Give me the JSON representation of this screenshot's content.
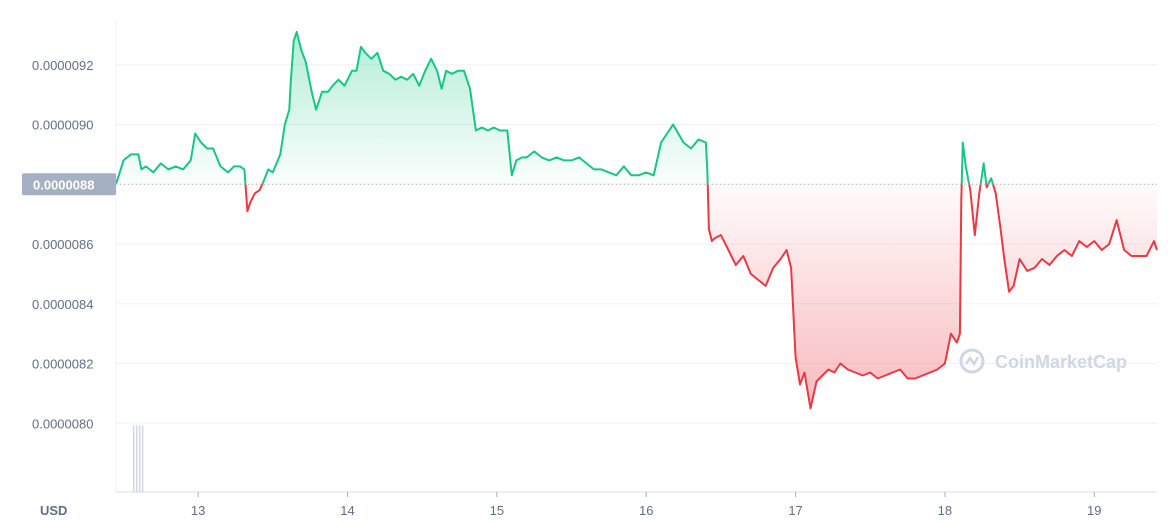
{
  "chart_data": {
    "type": "area",
    "currency_label": "USD",
    "watermark": "CoinMarketCap",
    "y_tick_labels": [
      "0.0000080",
      "0.0000082",
      "0.0000084",
      "0.0000086",
      "0.0000088",
      "0.0000090",
      "0.0000092"
    ],
    "y_ticks": [
      8e-06,
      8.2e-06,
      8.4e-06,
      8.6e-06,
      8.8e-06,
      9e-06,
      9.2e-06
    ],
    "ylim": [
      7.77e-06,
      9.35e-06
    ],
    "x_tick_labels": [
      "13",
      "14",
      "15",
      "16",
      "17",
      "18",
      "19"
    ],
    "x_ticks": [
      13,
      14,
      15,
      16,
      17,
      18,
      19
    ],
    "xlim": [
      12.45,
      19.42
    ],
    "reference_price": 8.8e-06,
    "reference_label": "0.0000088",
    "colors": {
      "up": "#16c784",
      "down": "#ea3943",
      "grid": "#eff2f5",
      "text": "#616e85"
    },
    "grid": true,
    "series": [
      {
        "values": [
          [
            12.45,
            8.8e-06
          ],
          [
            12.5,
            8.88e-06
          ],
          [
            12.55,
            8.9e-06
          ],
          [
            12.6,
            8.9e-06
          ],
          [
            12.62,
            8.85e-06
          ],
          [
            12.65,
            8.86e-06
          ],
          [
            12.7,
            8.84e-06
          ],
          [
            12.75,
            8.87e-06
          ],
          [
            12.8,
            8.85e-06
          ],
          [
            12.85,
            8.86e-06
          ],
          [
            12.9,
            8.85e-06
          ],
          [
            12.95,
            8.88e-06
          ],
          [
            12.98,
            8.97e-06
          ],
          [
            13.02,
            8.94e-06
          ],
          [
            13.06,
            8.92e-06
          ],
          [
            13.1,
            8.92e-06
          ],
          [
            13.15,
            8.86e-06
          ],
          [
            13.2,
            8.84e-06
          ],
          [
            13.24,
            8.86e-06
          ],
          [
            13.28,
            8.86e-06
          ],
          [
            13.31,
            8.85e-06
          ],
          [
            13.33,
            8.71e-06
          ],
          [
            13.35,
            8.74e-06
          ],
          [
            13.38,
            8.77e-06
          ],
          [
            13.41,
            8.78e-06
          ],
          [
            13.43,
            8.8e-06
          ],
          [
            13.47,
            8.85e-06
          ],
          [
            13.5,
            8.84e-06
          ],
          [
            13.55,
            8.9e-06
          ],
          [
            13.58,
            9e-06
          ],
          [
            13.61,
            9.05e-06
          ],
          [
            13.62,
            9.14e-06
          ],
          [
            13.64,
            9.28e-06
          ],
          [
            13.66,
            9.31e-06
          ],
          [
            13.69,
            9.25e-06
          ],
          [
            13.72,
            9.21e-06
          ],
          [
            13.76,
            9.11e-06
          ],
          [
            13.79,
            9.05e-06
          ],
          [
            13.83,
            9.11e-06
          ],
          [
            13.87,
            9.11e-06
          ],
          [
            13.9,
            9.13e-06
          ],
          [
            13.94,
            9.15e-06
          ],
          [
            13.98,
            9.13e-06
          ],
          [
            14.03,
            9.18e-06
          ],
          [
            14.06,
            9.18e-06
          ],
          [
            14.09,
            9.26e-06
          ],
          [
            14.12,
            9.24e-06
          ],
          [
            14.16,
            9.22e-06
          ],
          [
            14.2,
            9.24e-06
          ],
          [
            14.24,
            9.18e-06
          ],
          [
            14.28,
            9.17e-06
          ],
          [
            14.32,
            9.15e-06
          ],
          [
            14.36,
            9.16e-06
          ],
          [
            14.4,
            9.15e-06
          ],
          [
            14.44,
            9.17e-06
          ],
          [
            14.48,
            9.13e-06
          ],
          [
            14.52,
            9.18e-06
          ],
          [
            14.56,
            9.22e-06
          ],
          [
            14.6,
            9.18e-06
          ],
          [
            14.63,
            9.12e-06
          ],
          [
            14.66,
            9.18e-06
          ],
          [
            14.7,
            9.17e-06
          ],
          [
            14.74,
            9.18e-06
          ],
          [
            14.78,
            9.18e-06
          ],
          [
            14.82,
            9.12e-06
          ],
          [
            14.86,
            8.98e-06
          ],
          [
            14.9,
            8.99e-06
          ],
          [
            14.94,
            8.98e-06
          ],
          [
            14.98,
            8.99e-06
          ],
          [
            15.02,
            8.98e-06
          ],
          [
            15.07,
            8.98e-06
          ],
          [
            15.1,
            8.83e-06
          ],
          [
            15.13,
            8.88e-06
          ],
          [
            15.17,
            8.89e-06
          ],
          [
            15.2,
            8.89e-06
          ],
          [
            15.25,
            8.91e-06
          ],
          [
            15.3,
            8.89e-06
          ],
          [
            15.35,
            8.88e-06
          ],
          [
            15.4,
            8.89e-06
          ],
          [
            15.45,
            8.88e-06
          ],
          [
            15.5,
            8.88e-06
          ],
          [
            15.55,
            8.89e-06
          ],
          [
            15.6,
            8.87e-06
          ],
          [
            15.65,
            8.85e-06
          ],
          [
            15.7,
            8.85e-06
          ],
          [
            15.75,
            8.84e-06
          ],
          [
            15.8,
            8.83e-06
          ],
          [
            15.85,
            8.86e-06
          ],
          [
            15.9,
            8.83e-06
          ],
          [
            15.95,
            8.83e-06
          ],
          [
            16.0,
            8.84e-06
          ],
          [
            16.05,
            8.83e-06
          ],
          [
            16.1,
            8.94e-06
          ],
          [
            16.18,
            9e-06
          ],
          [
            16.25,
            8.94e-06
          ],
          [
            16.3,
            8.92e-06
          ],
          [
            16.35,
            8.95e-06
          ],
          [
            16.4,
            8.94e-06
          ],
          [
            16.41,
            8.84e-06
          ],
          [
            16.42,
            8.65e-06
          ],
          [
            16.44,
            8.61e-06
          ],
          [
            16.46,
            8.62e-06
          ],
          [
            16.5,
            8.63e-06
          ],
          [
            16.55,
            8.58e-06
          ],
          [
            16.6,
            8.53e-06
          ],
          [
            16.65,
            8.56e-06
          ],
          [
            16.7,
            8.5e-06
          ],
          [
            16.75,
            8.48e-06
          ],
          [
            16.8,
            8.46e-06
          ],
          [
            16.85,
            8.52e-06
          ],
          [
            16.9,
            8.55e-06
          ],
          [
            16.94,
            8.58e-06
          ],
          [
            16.97,
            8.52e-06
          ],
          [
            17.0,
            8.22e-06
          ],
          [
            17.03,
            8.13e-06
          ],
          [
            17.06,
            8.17e-06
          ],
          [
            17.1,
            8.05e-06
          ],
          [
            17.14,
            8.14e-06
          ],
          [
            17.18,
            8.16e-06
          ],
          [
            17.22,
            8.18e-06
          ],
          [
            17.26,
            8.17e-06
          ],
          [
            17.3,
            8.2e-06
          ],
          [
            17.35,
            8.18e-06
          ],
          [
            17.4,
            8.17e-06
          ],
          [
            17.45,
            8.16e-06
          ],
          [
            17.5,
            8.17e-06
          ],
          [
            17.55,
            8.15e-06
          ],
          [
            17.6,
            8.16e-06
          ],
          [
            17.65,
            8.17e-06
          ],
          [
            17.7,
            8.18e-06
          ],
          [
            17.75,
            8.15e-06
          ],
          [
            17.8,
            8.15e-06
          ],
          [
            17.85,
            8.16e-06
          ],
          [
            17.9,
            8.17e-06
          ],
          [
            17.95,
            8.18e-06
          ],
          [
            18.0,
            8.2e-06
          ],
          [
            18.04,
            8.3e-06
          ],
          [
            18.08,
            8.27e-06
          ],
          [
            18.1,
            8.3e-06
          ],
          [
            18.11,
            8.75e-06
          ],
          [
            18.12,
            8.94e-06
          ],
          [
            18.14,
            8.86e-06
          ],
          [
            18.17,
            8.78e-06
          ],
          [
            18.2,
            8.63e-06
          ],
          [
            18.23,
            8.77e-06
          ],
          [
            18.26,
            8.87e-06
          ],
          [
            18.28,
            8.79e-06
          ],
          [
            18.31,
            8.82e-06
          ],
          [
            18.34,
            8.77e-06
          ],
          [
            18.37,
            8.66e-06
          ],
          [
            18.4,
            8.54e-06
          ],
          [
            18.43,
            8.44e-06
          ],
          [
            18.46,
            8.46e-06
          ],
          [
            18.5,
            8.55e-06
          ],
          [
            18.55,
            8.51e-06
          ],
          [
            18.6,
            8.52e-06
          ],
          [
            18.65,
            8.55e-06
          ],
          [
            18.7,
            8.53e-06
          ],
          [
            18.75,
            8.56e-06
          ],
          [
            18.8,
            8.58e-06
          ],
          [
            18.85,
            8.56e-06
          ],
          [
            18.9,
            8.61e-06
          ],
          [
            18.95,
            8.59e-06
          ],
          [
            19.0,
            8.61e-06
          ],
          [
            19.05,
            8.58e-06
          ],
          [
            19.1,
            8.6e-06
          ],
          [
            19.15,
            8.68e-06
          ],
          [
            19.2,
            8.58e-06
          ],
          [
            19.25,
            8.56e-06
          ],
          [
            19.3,
            8.56e-06
          ],
          [
            19.35,
            8.56e-06
          ],
          [
            19.4,
            8.61e-06
          ],
          [
            19.42,
            8.58e-06
          ]
        ]
      }
    ],
    "volume_bars": [
      [
        12.57,
        0.95
      ],
      [
        12.59,
        0.95
      ],
      [
        12.61,
        0.95
      ],
      [
        12.63,
        0.95
      ]
    ]
  }
}
